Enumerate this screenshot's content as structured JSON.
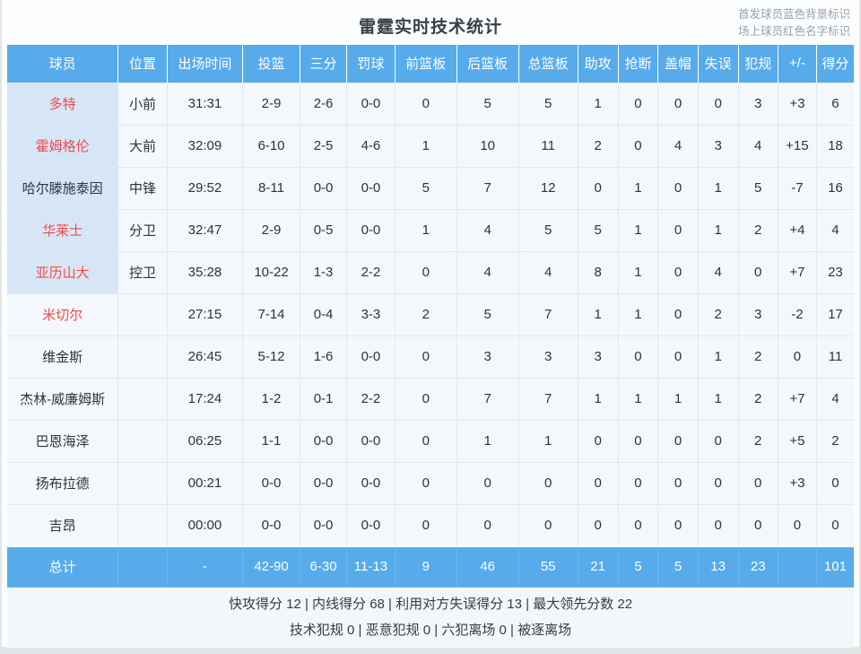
{
  "page": {
    "title": "雷霆实时技术统计",
    "legend_line1": "首发球员蓝色背景标识",
    "legend_line2": "场上球员红色名字标识"
  },
  "colors": {
    "header_blue": "#57abeb",
    "starter_cell_bg": "#d7e6f7",
    "on_court_name_red": "#f14b4b",
    "row_bg": "#f4f8fc"
  },
  "table": {
    "columns": [
      "球员",
      "位置",
      "出场时间",
      "投篮",
      "三分",
      "罚球",
      "前篮板",
      "后篮板",
      "总篮板",
      "助攻",
      "抢断",
      "盖帽",
      "失误",
      "犯规",
      "+/-",
      "得分"
    ],
    "column_ids": [
      "player",
      "position",
      "minutes",
      "fg",
      "3pt",
      "ft",
      "oreb",
      "dreb",
      "treb",
      "ast",
      "stl",
      "blk",
      "to",
      "pf",
      "plusminus",
      "pts"
    ],
    "row_keys": [
      "name",
      "position",
      "minutes",
      "fg",
      "three",
      "ft",
      "oreb",
      "dreb",
      "treb",
      "ast",
      "stl",
      "blk",
      "to",
      "pf",
      "pm",
      "pts"
    ],
    "rows": [
      {
        "name": "多特",
        "starter": true,
        "on_court": true,
        "position": "小前",
        "minutes": "31:31",
        "fg": "2-9",
        "three": "2-6",
        "ft": "0-0",
        "oreb": "0",
        "dreb": "5",
        "treb": "5",
        "ast": "1",
        "stl": "0",
        "blk": "0",
        "to": "0",
        "pf": "3",
        "pm": "+3",
        "pts": "6"
      },
      {
        "name": "霍姆格伦",
        "starter": true,
        "on_court": true,
        "position": "大前",
        "minutes": "32:09",
        "fg": "6-10",
        "three": "2-5",
        "ft": "4-6",
        "oreb": "1",
        "dreb": "10",
        "treb": "11",
        "ast": "2",
        "stl": "0",
        "blk": "4",
        "to": "3",
        "pf": "4",
        "pm": "+15",
        "pts": "18"
      },
      {
        "name": "哈尔滕施泰因",
        "starter": true,
        "on_court": false,
        "position": "中锋",
        "minutes": "29:52",
        "fg": "8-11",
        "three": "0-0",
        "ft": "0-0",
        "oreb": "5",
        "dreb": "7",
        "treb": "12",
        "ast": "0",
        "stl": "1",
        "blk": "0",
        "to": "1",
        "pf": "5",
        "pm": "-7",
        "pts": "16"
      },
      {
        "name": "华莱士",
        "starter": true,
        "on_court": true,
        "position": "分卫",
        "minutes": "32:47",
        "fg": "2-9",
        "three": "0-5",
        "ft": "0-0",
        "oreb": "1",
        "dreb": "4",
        "treb": "5",
        "ast": "5",
        "stl": "1",
        "blk": "0",
        "to": "1",
        "pf": "2",
        "pm": "+4",
        "pts": "4"
      },
      {
        "name": "亚历山大",
        "starter": true,
        "on_court": true,
        "position": "控卫",
        "minutes": "35:28",
        "fg": "10-22",
        "three": "1-3",
        "ft": "2-2",
        "oreb": "0",
        "dreb": "4",
        "treb": "4",
        "ast": "8",
        "stl": "1",
        "blk": "0",
        "to": "4",
        "pf": "0",
        "pm": "+7",
        "pts": "23"
      },
      {
        "name": "米切尔",
        "starter": false,
        "on_court": true,
        "position": "",
        "minutes": "27:15",
        "fg": "7-14",
        "three": "0-4",
        "ft": "3-3",
        "oreb": "2",
        "dreb": "5",
        "treb": "7",
        "ast": "1",
        "stl": "1",
        "blk": "0",
        "to": "2",
        "pf": "3",
        "pm": "-2",
        "pts": "17"
      },
      {
        "name": "维金斯",
        "starter": false,
        "on_court": false,
        "position": "",
        "minutes": "26:45",
        "fg": "5-12",
        "three": "1-6",
        "ft": "0-0",
        "oreb": "0",
        "dreb": "3",
        "treb": "3",
        "ast": "3",
        "stl": "0",
        "blk": "0",
        "to": "1",
        "pf": "2",
        "pm": "0",
        "pts": "11"
      },
      {
        "name": "杰林-威廉姆斯",
        "starter": false,
        "on_court": false,
        "position": "",
        "minutes": "17:24",
        "fg": "1-2",
        "three": "0-1",
        "ft": "2-2",
        "oreb": "0",
        "dreb": "7",
        "treb": "7",
        "ast": "1",
        "stl": "1",
        "blk": "1",
        "to": "1",
        "pf": "2",
        "pm": "+7",
        "pts": "4"
      },
      {
        "name": "巴恩海泽",
        "starter": false,
        "on_court": false,
        "position": "",
        "minutes": "06:25",
        "fg": "1-1",
        "three": "0-0",
        "ft": "0-0",
        "oreb": "0",
        "dreb": "1",
        "treb": "1",
        "ast": "0",
        "stl": "0",
        "blk": "0",
        "to": "0",
        "pf": "2",
        "pm": "+5",
        "pts": "2"
      },
      {
        "name": "扬布拉德",
        "starter": false,
        "on_court": false,
        "position": "",
        "minutes": "00:21",
        "fg": "0-0",
        "three": "0-0",
        "ft": "0-0",
        "oreb": "0",
        "dreb": "0",
        "treb": "0",
        "ast": "0",
        "stl": "0",
        "blk": "0",
        "to": "0",
        "pf": "0",
        "pm": "+3",
        "pts": "0"
      },
      {
        "name": "吉昂",
        "starter": false,
        "on_court": false,
        "position": "",
        "minutes": "00:00",
        "fg": "0-0",
        "three": "0-0",
        "ft": "0-0",
        "oreb": "0",
        "dreb": "0",
        "treb": "0",
        "ast": "0",
        "stl": "0",
        "blk": "0",
        "to": "0",
        "pf": "0",
        "pm": "0",
        "pts": "0"
      }
    ],
    "total": {
      "name": "总计",
      "position": "",
      "minutes": "-",
      "fg": "42-90",
      "three": "6-30",
      "ft": "11-13",
      "oreb": "9",
      "dreb": "46",
      "treb": "55",
      "ast": "21",
      "stl": "5",
      "blk": "5",
      "to": "13",
      "pf": "23",
      "pm": "",
      "pts": "101"
    }
  },
  "footer": {
    "line1": "快攻得分 12 | 内线得分 68 | 利用对方失误得分 13 | 最大领先分数 22",
    "line2": "技术犯规 0 | 恶意犯规 0 | 六犯离场 0 | 被逐离场"
  }
}
